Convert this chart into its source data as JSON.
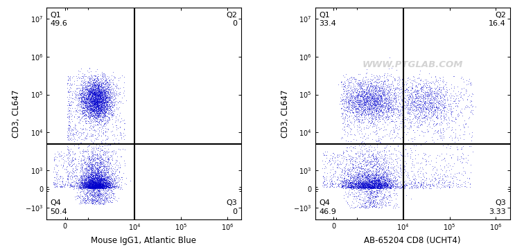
{
  "panel1": {
    "xlabel": "Mouse IgG1, Atlantic Blue",
    "ylabel": "CD3, CL647",
    "quadrants": {
      "Q1": "49.6",
      "Q2": "0",
      "Q3": "0",
      "Q4": "50.4"
    },
    "gate_x": 10000,
    "gate_y": 5000
  },
  "panel2": {
    "xlabel": "AB-65204 CD8 (UCHT4)",
    "ylabel": "CD3, CL647",
    "watermark": "WWW.PTGLAB.COM",
    "quadrants": {
      "Q1": "33.4",
      "Q2": "16.4",
      "Q3": "3.33",
      "Q4": "46.9"
    },
    "gate_x": 10000,
    "gate_y": 5000
  },
  "font_size": 8,
  "label_font_size": 8.5,
  "dot_size": 0.5,
  "linthresh_x": 1000,
  "linthresh_y": 1000,
  "xlim": [
    -800,
    2000000
  ],
  "ylim": [
    -2000,
    20000000
  ],
  "x_ticks": [
    0,
    10000,
    100000,
    1000000
  ],
  "x_tick_labels": [
    "0",
    "$10^4$",
    "$10^5$",
    "$10^6$"
  ],
  "y_ticks": [
    10000000,
    1000000,
    100000,
    10000,
    1000,
    0,
    -1000
  ],
  "y_tick_labels": [
    "$10^7$",
    "$10^6$",
    "$10^5$",
    "$10^4$",
    "$10^3$",
    "0",
    "$-10^3$"
  ]
}
